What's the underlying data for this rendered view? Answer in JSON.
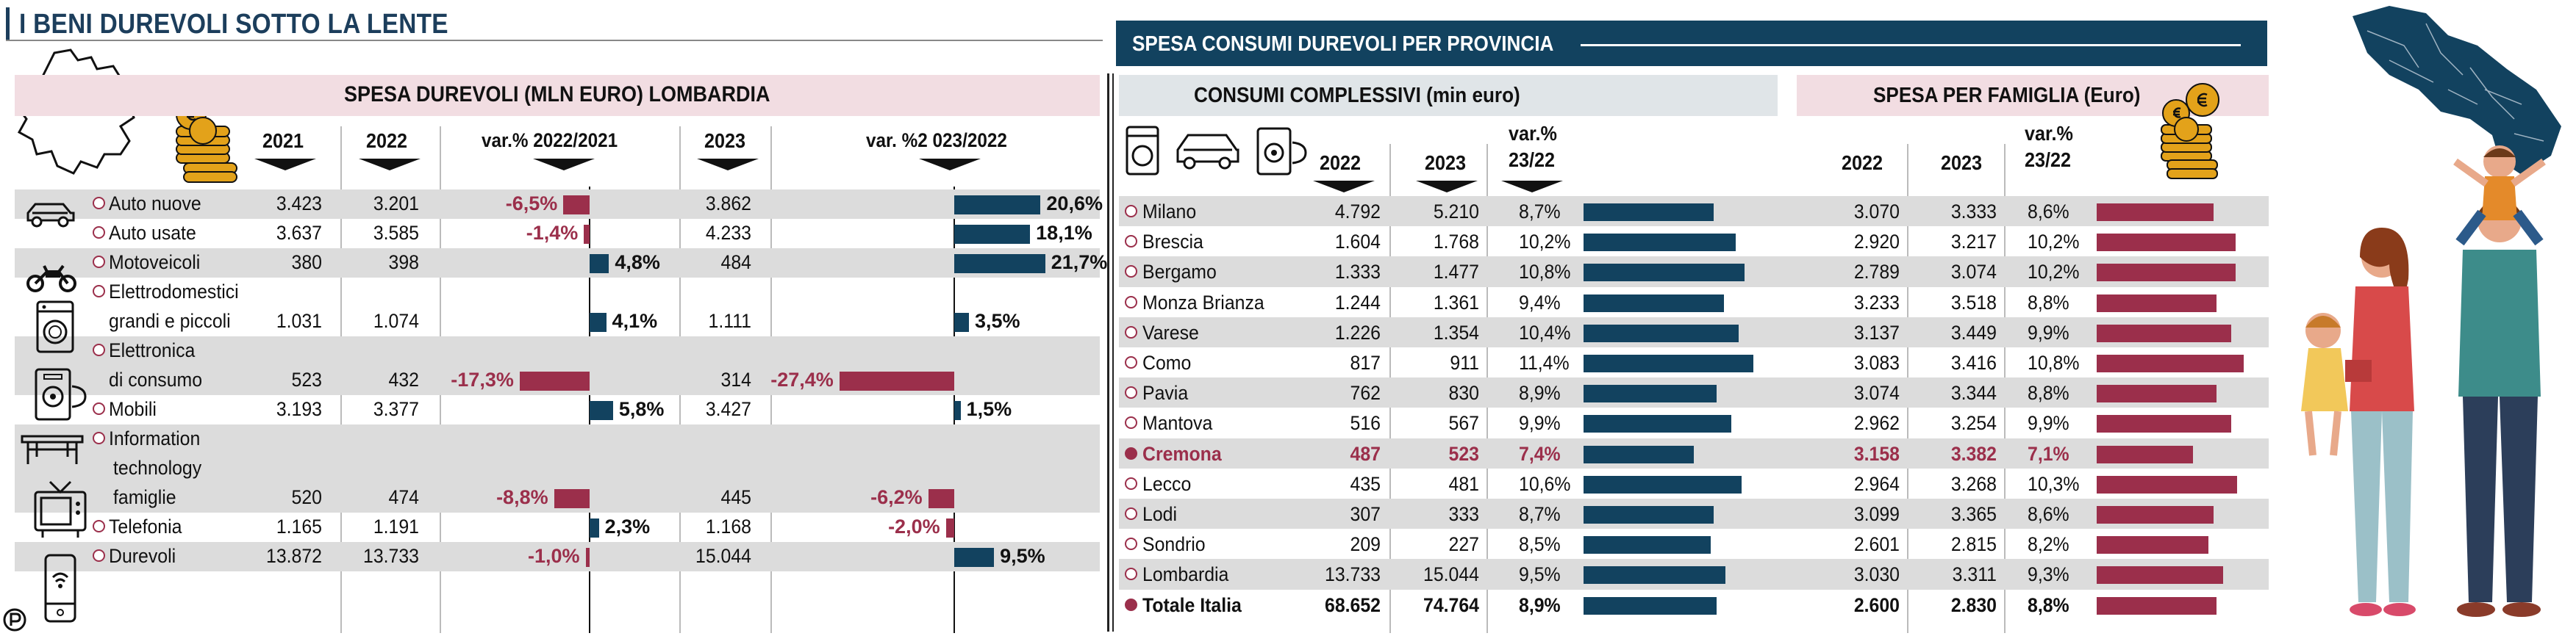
{
  "left": {
    "title": "I BENI DUREVOLI SOTTO LA LENTE",
    "band_title": "SPESA DUREVOLI (MLN EURO)  LOMBARDIA",
    "columns": [
      "2021",
      "2022",
      "var.% 2022/2021",
      "2023",
      "var. %2 023/2022"
    ],
    "rows": [
      {
        "label": [
          "Auto nuove"
        ],
        "icon": "car-icon",
        "v2021": "3.423",
        "v2022": "3.201",
        "var1": "-6,5%",
        "v2023": "3.862",
        "var2": "20,6%"
      },
      {
        "label": [
          "Auto usate"
        ],
        "icon": "",
        "v2021": "3.637",
        "v2022": "3.585",
        "var1": "-1,4%",
        "v2023": "4.233",
        "var2": "18,1%"
      },
      {
        "label": [
          "Motoveicoli"
        ],
        "icon": "motorcycle-icon",
        "v2021": "380",
        "v2022": "398",
        "var1": "4,8%",
        "v2023": "484",
        "var2": "21,7%"
      },
      {
        "label": [
          "Elettrodomestici",
          "grandi e piccoli"
        ],
        "icon": "washing-machine-icon",
        "v2021": "1.031",
        "v2022": "1.074",
        "var1": "4,1%",
        "v2023": "1.111",
        "var2": "3,5%"
      },
      {
        "label": [
          "Elettronica",
          "di consumo"
        ],
        "icon": "electronics-icon",
        "v2021": "523",
        "v2022": "432",
        "var1": "-17,3%",
        "v2023": "314",
        "var2": "-27,4%"
      },
      {
        "label": [
          "Mobili"
        ],
        "icon": "table-icon",
        "v2021": "3.193",
        "v2022": "3.377",
        "var1": "5,8%",
        "v2023": "3.427",
        "var2": "1,5%"
      },
      {
        "label": [
          "Information",
          "technology",
          "famiglie"
        ],
        "icon": "tv-icon",
        "v2021": "520",
        "v2022": "474",
        "var1": "-8,8%",
        "v2023": "445",
        "var2": "-6,2%"
      },
      {
        "label": [
          "Telefonia"
        ],
        "icon": "phone-icon",
        "v2021": "1.165",
        "v2022": "1.191",
        "var1": "2,3%",
        "v2023": "1.168",
        "var2": "-2,0%"
      },
      {
        "label": [
          "Durevoli"
        ],
        "icon": "",
        "v2021": "13.872",
        "v2022": "13.733",
        "var1": "-1,0%",
        "v2023": "15.044",
        "var2": "9,5%"
      }
    ]
  },
  "right": {
    "title": "SPESA CONSUMI DUREVOLI PER PROVINCIA",
    "band1_title": "CONSUMI COMPLESSIVI (min euro)",
    "band2_title": "SPESA PER FAMIGLIA (Euro)",
    "columns1": [
      "2022",
      "2023",
      "var.%",
      "23/22"
    ],
    "columns2": [
      "2022",
      "2023",
      "var.%",
      "23/22"
    ],
    "rows": [
      {
        "name": "Milano",
        "c2022": "4.792",
        "c2023": "5.210",
        "cvar": "8,7%",
        "f2022": "3.070",
        "f2023": "3.333",
        "fvar": "8,6%"
      },
      {
        "name": "Brescia",
        "c2022": "1.604",
        "c2023": "1.768",
        "cvar": "10,2%",
        "f2022": "2.920",
        "f2023": "3.217",
        "fvar": "10,2%"
      },
      {
        "name": "Bergamo",
        "c2022": "1.333",
        "c2023": "1.477",
        "cvar": "10,8%",
        "f2022": "2.789",
        "f2023": "3.074",
        "fvar": "10,2%"
      },
      {
        "name": "Monza Brianza",
        "c2022": "1.244",
        "c2023": "1.361",
        "cvar": "9,4%",
        "f2022": "3.233",
        "f2023": "3.518",
        "fvar": "8,8%"
      },
      {
        "name": "Varese",
        "c2022": "1.226",
        "c2023": "1.354",
        "cvar": "10,4%",
        "f2022": "3.137",
        "f2023": "3.449",
        "fvar": "9,9%"
      },
      {
        "name": "Como",
        "c2022": "817",
        "c2023": "911",
        "cvar": "11,4%",
        "f2022": "3.083",
        "f2023": "3.416",
        "fvar": "10,8%"
      },
      {
        "name": "Pavia",
        "c2022": "762",
        "c2023": "830",
        "cvar": "8,9%",
        "f2022": "3.074",
        "f2023": "3.344",
        "fvar": "8,8%"
      },
      {
        "name": "Mantova",
        "c2022": "516",
        "c2023": "567",
        "cvar": "9,9%",
        "f2022": "2.962",
        "f2023": "3.254",
        "fvar": "9,9%"
      },
      {
        "name": "Cremona",
        "c2022": "487",
        "c2023": "523",
        "cvar": "7,4%",
        "f2022": "3.158",
        "f2023": "3.382",
        "fvar": "7,1%",
        "highlight": true
      },
      {
        "name": "Lecco",
        "c2022": "435",
        "c2023": "481",
        "cvar": "10,6%",
        "f2022": "2.964",
        "f2023": "3.268",
        "fvar": "10,3%"
      },
      {
        "name": "Lodi",
        "c2022": "307",
        "c2023": "333",
        "cvar": "8,7%",
        "f2022": "3.099",
        "f2023": "3.365",
        "fvar": "8,6%"
      },
      {
        "name": "Sondrio",
        "c2022": "209",
        "c2023": "227",
        "cvar": "8,5%",
        "f2022": "2.601",
        "f2023": "2.815",
        "fvar": "8,2%"
      },
      {
        "name": "Lombardia",
        "c2022": "13.733",
        "c2023": "15.044",
        "cvar": "9,5%",
        "f2022": "3.030",
        "f2023": "3.311",
        "fvar": "9,3%"
      },
      {
        "name": "Totale Italia",
        "c2022": "68.652",
        "c2023": "74.764",
        "cvar": "8,9%",
        "f2022": "2.600",
        "f2023": "2.830",
        "fvar": "8,8%",
        "total": true
      }
    ]
  },
  "colors": {
    "navy": "#12425f",
    "bordeaux": "#9b2f4b",
    "pink_band": "#f2dde2",
    "grey_band": "#e0e5e8",
    "stripe": "#dcdcdc"
  },
  "chart_data": [
    {
      "type": "table",
      "title": "SPESA DUREVOLI (MLN EURO)  LOMBARDIA",
      "categories": [
        "Auto nuove",
        "Auto usate",
        "Motoveicoli",
        "Elettrodomestici grandi e piccoli",
        "Elettronica di consumo",
        "Mobili",
        "Information technology famiglie",
        "Telefonia",
        "Durevoli"
      ],
      "series": [
        {
          "name": "2021",
          "values": [
            3423,
            3637,
            380,
            1031,
            523,
            3193,
            520,
            1165,
            13872
          ]
        },
        {
          "name": "2022",
          "values": [
            3201,
            3585,
            398,
            1074,
            432,
            3377,
            474,
            1191,
            13733
          ]
        },
        {
          "name": "var.% 2022/2021",
          "values": [
            -6.5,
            -1.4,
            4.8,
            4.1,
            -17.3,
            5.8,
            -8.8,
            2.3,
            -1.0
          ]
        },
        {
          "name": "2023",
          "values": [
            3862,
            4233,
            484,
            1111,
            314,
            3427,
            445,
            1168,
            15044
          ]
        },
        {
          "name": "var. %2 023/2022",
          "values": [
            20.6,
            18.1,
            21.7,
            3.5,
            -27.4,
            1.5,
            -6.2,
            -2.0,
            9.5
          ]
        }
      ]
    },
    {
      "type": "table",
      "title": "SPESA CONSUMI DUREVOLI PER PROVINCIA",
      "categories": [
        "Milano",
        "Brescia",
        "Bergamo",
        "Monza Brianza",
        "Varese",
        "Como",
        "Pavia",
        "Mantova",
        "Cremona",
        "Lecco",
        "Lodi",
        "Sondrio",
        "Lombardia",
        "Totale Italia"
      ],
      "series": [
        {
          "name": "CONSUMI COMPLESSIVI 2022",
          "values": [
            4792,
            1604,
            1333,
            1244,
            1226,
            817,
            762,
            516,
            487,
            435,
            307,
            209,
            13733,
            68652
          ]
        },
        {
          "name": "CONSUMI COMPLESSIVI 2023",
          "values": [
            5210,
            1768,
            1477,
            1361,
            1354,
            911,
            830,
            567,
            523,
            481,
            333,
            227,
            15044,
            74764
          ]
        },
        {
          "name": "CONSUMI COMPLESSIVI var.% 23/22",
          "values": [
            8.7,
            10.2,
            10.8,
            9.4,
            10.4,
            11.4,
            8.9,
            9.9,
            7.4,
            10.6,
            8.7,
            8.5,
            9.5,
            8.9
          ]
        },
        {
          "name": "SPESA PER FAMIGLIA 2022",
          "values": [
            3070,
            2920,
            2789,
            3233,
            3137,
            3083,
            3074,
            2962,
            3158,
            2964,
            3099,
            2601,
            3030,
            2600
          ]
        },
        {
          "name": "SPESA PER FAMIGLIA 2023",
          "values": [
            3333,
            3217,
            3074,
            3518,
            3449,
            3416,
            3344,
            3254,
            3382,
            3268,
            3365,
            2815,
            3311,
            2830
          ]
        },
        {
          "name": "SPESA PER FAMIGLIA var.% 23/22",
          "values": [
            8.6,
            10.2,
            10.2,
            8.8,
            9.9,
            10.8,
            8.8,
            9.9,
            7.1,
            10.3,
            8.6,
            8.2,
            9.3,
            8.8
          ]
        }
      ]
    }
  ]
}
